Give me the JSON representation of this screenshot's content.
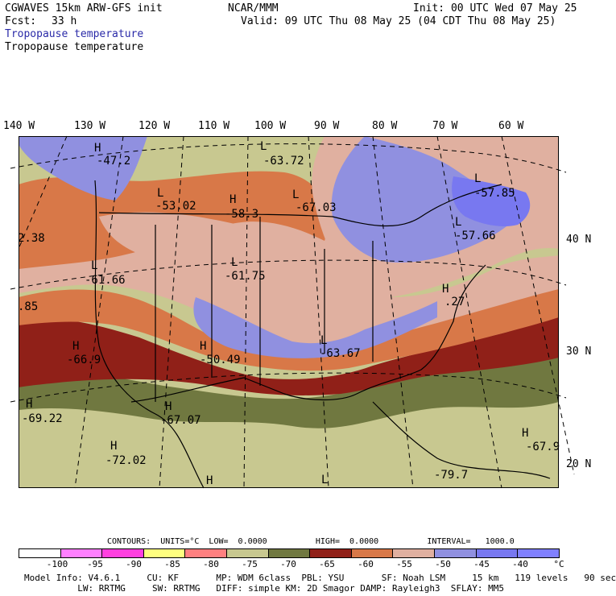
{
  "header": {
    "model": "CGWAVES 15km ARW-GFS init",
    "org": "NCAR/MMM",
    "init": "Init: 00 UTC Wed 07 May 25",
    "fcst_label": "Fcst:",
    "fcst_value": "33 h",
    "valid": "Valid: 09 UTC Thu 08 May 25 (04 CDT Thu 08 May 25)",
    "field_title_blue": "Tropopause temperature",
    "field_title_black": "Tropopause temperature"
  },
  "axes": {
    "lon_labels": [
      "140 W",
      "130 W",
      "120 W",
      "110 W",
      "100 W",
      "90 W",
      "80 W",
      "70 W",
      "60 W"
    ],
    "lat_labels": [
      "40 N",
      "30 N",
      "20 N"
    ],
    "left_edge_values": [
      "2.38",
      ".85"
    ]
  },
  "pressure_systems": [
    {
      "letter": "H",
      "value": "-47.2"
    },
    {
      "letter": "L",
      "value": "-63.72"
    },
    {
      "letter": "L",
      "value": "-53.02"
    },
    {
      "letter": "H",
      "value": "-58.3"
    },
    {
      "letter": "L",
      "value": "-67.03"
    },
    {
      "letter": "L",
      "value": "-57.85"
    },
    {
      "letter": "L",
      "value": "-57.66"
    },
    {
      "letter": "L",
      "value": "-61.66"
    },
    {
      "letter": "L",
      "value": "-61.75"
    },
    {
      "letter": "H",
      "value": "-66.9"
    },
    {
      "letter": "H",
      "value": "-50.49"
    },
    {
      "letter": "L",
      "value": "-63.67"
    },
    {
      "letter": "H",
      "value": ".27"
    },
    {
      "letter": "H",
      "value": "-69.22"
    },
    {
      "letter": "H",
      "value": "-67.07"
    },
    {
      "letter": "H",
      "value": "-72.02"
    },
    {
      "letter": "H",
      "value": ""
    },
    {
      "letter": "L",
      "value": ""
    },
    {
      "letter": "",
      "value": "-79.7"
    },
    {
      "letter": "H",
      "value": "-67.9"
    }
  ],
  "contours_line": {
    "text": "CONTOURS:  UNITS=°C  LOW=  0.0000          HIGH=  0.0000          INTERVAL=   1000.0"
  },
  "legend": {
    "colors": [
      "#ffffff",
      "#ff80ff",
      "#ff40e0",
      "#ffff80",
      "#ff8080",
      "#c8c890",
      "#707840",
      "#902018",
      "#d87848",
      "#e0b0a0",
      "#9090e0",
      "#7878f0",
      "#8080ff"
    ],
    "tick_labels": [
      "-100",
      "-95",
      "-90",
      "-85",
      "-80",
      "-75",
      "-70",
      "-65",
      "-60",
      "-55",
      "-50",
      "-45",
      "-40",
      "°C"
    ]
  },
  "footer": {
    "line1": "Model Info: V4.6.1     CU: KF       MP: WDM 6class  PBL: YSU       SF: Noah LSM     15 km   119 levels   90 sec",
    "line2": "          LW: RRTMG     SW: RRTMG   DIFF: simple KM: 2D Smagor DAMP: Rayleigh3  SFLAY: MM5"
  }
}
